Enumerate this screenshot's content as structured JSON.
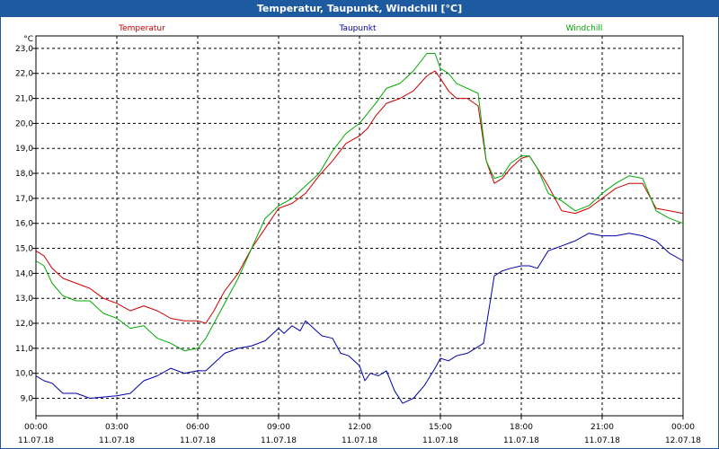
{
  "window": {
    "title": "Temperatur, Taupunkt, Windchill [°C]"
  },
  "colors": {
    "temperatur": "#cc0000",
    "taupunkt": "#0000aa",
    "windchill": "#00aa00",
    "grid": "#000000",
    "titlebar": "#1e5aa0"
  },
  "chart_data": {
    "type": "line",
    "title": "Temperatur, Taupunkt, Windchill [°C]",
    "ylabel": "°C",
    "xlabel": "",
    "ylim": [
      8.3,
      23.5
    ],
    "xlim": [
      0,
      24
    ],
    "yticks": [
      9,
      10,
      11,
      12,
      13,
      14,
      15,
      16,
      17,
      18,
      19,
      20,
      21,
      22,
      23
    ],
    "ytick_labels": [
      "9,0",
      "10,0",
      "11,0",
      "12,0",
      "13,0",
      "14,0",
      "15,0",
      "16,0",
      "17,0",
      "18,0",
      "19,0",
      "20,0",
      "21,0",
      "22,0",
      "23,0"
    ],
    "xticks": [
      {
        "x": 0,
        "time": "00:00",
        "date": "11.07.18"
      },
      {
        "x": 3,
        "time": "03:00",
        "date": "11.07.18"
      },
      {
        "x": 6,
        "time": "06:00",
        "date": "11.07.18"
      },
      {
        "x": 9,
        "time": "09:00",
        "date": "11.07.18"
      },
      {
        "x": 12,
        "time": "12:00",
        "date": "11.07.18"
      },
      {
        "x": 15,
        "time": "15:00",
        "date": "11.07.18"
      },
      {
        "x": 18,
        "time": "18:00",
        "date": "11.07.18"
      },
      {
        "x": 21,
        "time": "21:00",
        "date": "11.07.18"
      },
      {
        "x": 24,
        "time": "00:00",
        "date": "12.07.18"
      }
    ],
    "grid": true,
    "series": [
      {
        "name": "Temperatur",
        "color": "#cc0000",
        "x": [
          0,
          0.3,
          0.6,
          1,
          1.5,
          2,
          2.5,
          3,
          3.5,
          4,
          4.5,
          5,
          5.5,
          6,
          6.3,
          6.6,
          7,
          7.5,
          8,
          8.5,
          9,
          9.5,
          10,
          10.5,
          11,
          11.5,
          12,
          12.3,
          12.6,
          13,
          13.5,
          14,
          14.5,
          14.8,
          15,
          15.3,
          15.6,
          16,
          16.4,
          16.7,
          17,
          17.3,
          17.6,
          18,
          18.3,
          18.6,
          19,
          19.5,
          20,
          20.5,
          21,
          21.5,
          22,
          22.5,
          23,
          23.5,
          24
        ],
        "values": [
          14.9,
          14.7,
          14.2,
          13.8,
          13.6,
          13.4,
          13.0,
          12.8,
          12.5,
          12.7,
          12.5,
          12.2,
          12.1,
          12.1,
          12.0,
          12.5,
          13.3,
          14.0,
          15.0,
          15.8,
          16.6,
          16.8,
          17.2,
          17.9,
          18.5,
          19.2,
          19.5,
          19.8,
          20.3,
          20.8,
          21.0,
          21.3,
          21.9,
          22.1,
          21.8,
          21.3,
          21.0,
          21.0,
          20.7,
          18.5,
          17.6,
          17.8,
          18.2,
          18.6,
          18.7,
          18.2,
          17.5,
          16.5,
          16.4,
          16.6,
          17.0,
          17.4,
          17.6,
          17.6,
          16.6,
          16.5,
          16.4
        ]
      },
      {
        "name": "Taupunkt",
        "color": "#0000aa",
        "x": [
          0,
          0.3,
          0.6,
          1,
          1.5,
          2,
          2.5,
          3,
          3.5,
          4,
          4.5,
          5,
          5.5,
          6,
          6.3,
          6.6,
          7,
          7.5,
          8,
          8.5,
          9,
          9.2,
          9.5,
          9.8,
          10,
          10.3,
          10.6,
          11,
          11.3,
          11.6,
          12,
          12.2,
          12.4,
          12.7,
          13,
          13.3,
          13.6,
          14,
          14.4,
          14.8,
          15,
          15.3,
          15.6,
          16,
          16.3,
          16.6,
          17,
          17.3,
          17.6,
          18,
          18.3,
          18.6,
          19,
          19.5,
          20,
          20.5,
          21,
          21.5,
          22,
          22.5,
          23,
          23.5,
          24
        ],
        "values": [
          9.9,
          9.7,
          9.6,
          9.2,
          9.2,
          9.0,
          9.05,
          9.1,
          9.2,
          9.7,
          9.9,
          10.2,
          10.0,
          10.1,
          10.1,
          10.4,
          10.8,
          11.0,
          11.1,
          11.3,
          11.8,
          11.6,
          11.9,
          11.7,
          12.1,
          11.8,
          11.5,
          11.4,
          10.8,
          10.7,
          10.3,
          9.7,
          10.0,
          9.9,
          10.1,
          9.3,
          8.8,
          9.0,
          9.5,
          10.2,
          10.6,
          10.5,
          10.7,
          10.8,
          11.0,
          11.2,
          13.9,
          14.1,
          14.2,
          14.3,
          14.3,
          14.2,
          14.9,
          15.1,
          15.3,
          15.6,
          15.5,
          15.5,
          15.6,
          15.5,
          15.3,
          14.8,
          14.5
        ]
      },
      {
        "name": "Windchill",
        "color": "#00aa00",
        "x": [
          0,
          0.3,
          0.6,
          1,
          1.5,
          2,
          2.5,
          3,
          3.5,
          4,
          4.5,
          5,
          5.5,
          6,
          6.3,
          6.6,
          7,
          7.5,
          8,
          8.5,
          9,
          9.5,
          10,
          10.5,
          11,
          11.5,
          12,
          12.3,
          12.6,
          13,
          13.5,
          14,
          14.5,
          14.8,
          15,
          15.3,
          15.6,
          16,
          16.4,
          16.7,
          17,
          17.3,
          17.6,
          18,
          18.3,
          18.6,
          19,
          19.5,
          20,
          20.5,
          21,
          21.5,
          22,
          22.5,
          23,
          23.5,
          24
        ],
        "values": [
          14.5,
          14.3,
          13.6,
          13.1,
          12.9,
          12.9,
          12.4,
          12.2,
          11.8,
          11.9,
          11.4,
          11.2,
          10.9,
          11.0,
          11.4,
          12.0,
          12.8,
          13.8,
          15.0,
          16.2,
          16.7,
          17.0,
          17.5,
          18.0,
          18.9,
          19.6,
          20.0,
          20.4,
          20.8,
          21.4,
          21.6,
          22.1,
          22.8,
          22.8,
          22.2,
          22.0,
          21.6,
          21.4,
          21.2,
          18.5,
          17.8,
          17.9,
          18.4,
          18.7,
          18.7,
          18.2,
          17.2,
          16.9,
          16.5,
          16.7,
          17.2,
          17.6,
          17.9,
          17.8,
          16.5,
          16.2,
          16.0
        ]
      }
    ]
  }
}
